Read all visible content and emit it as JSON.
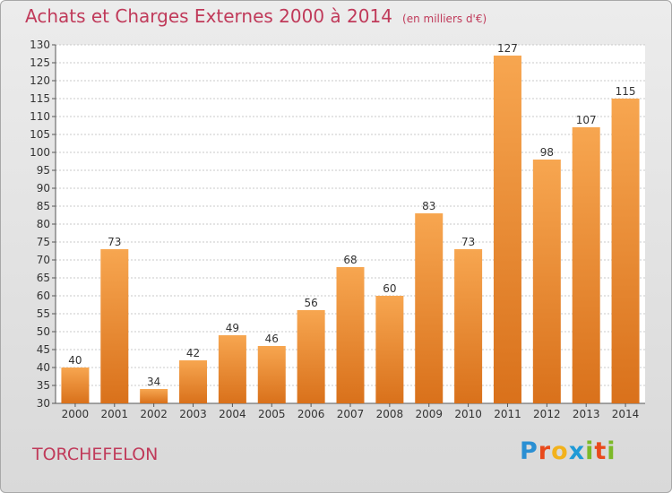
{
  "header": {
    "title": "Achats et Charges Externes 2000 à 2014",
    "subtitle": "(en milliers d'€)"
  },
  "footer": {
    "commune": "TORCHEFELON",
    "brand_letters": [
      {
        "char": "P",
        "color": "#2a8fd3"
      },
      {
        "char": "r",
        "color": "#e94a1c"
      },
      {
        "char": "o",
        "color": "#f2b21c"
      },
      {
        "char": "x",
        "color": "#1f9ad6"
      },
      {
        "char": "i",
        "color": "#7cb928"
      },
      {
        "char": "t",
        "color": "#e94a1c"
      },
      {
        "char": "i",
        "color": "#7cb928"
      }
    ]
  },
  "colors": {
    "bar_top": "#f7a650",
    "bar_bottom": "#d9711b",
    "grid": "#c8c8c8",
    "text_accent": "#c03a5a"
  },
  "chart_data": {
    "type": "bar",
    "categories": [
      "2000",
      "2001",
      "2002",
      "2003",
      "2004",
      "2005",
      "2006",
      "2007",
      "2008",
      "2009",
      "2010",
      "2011",
      "2012",
      "2013",
      "2014"
    ],
    "values": [
      40,
      73,
      34,
      42,
      49,
      46,
      56,
      68,
      60,
      83,
      73,
      127,
      98,
      107,
      115
    ],
    "ylim": [
      30,
      130
    ],
    "yticks": [
      30,
      35,
      40,
      45,
      50,
      55,
      60,
      65,
      70,
      75,
      80,
      85,
      90,
      95,
      100,
      105,
      110,
      115,
      120,
      125,
      130
    ],
    "grid": true,
    "data_labels": true
  }
}
